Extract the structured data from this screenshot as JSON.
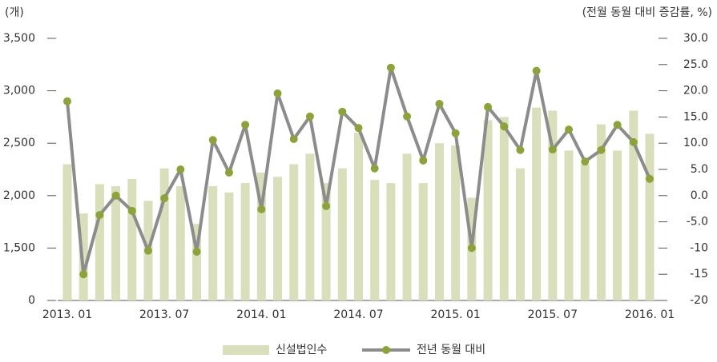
{
  "chart_data": {
    "type": "bar_line",
    "y_label": "(개)",
    "y2_label": "(전월 동월 대비 증감률, %)",
    "categories": [
      "2013. 01",
      null,
      null,
      null,
      null,
      null,
      "2013. 07",
      null,
      null,
      null,
      null,
      null,
      "2014. 01",
      null,
      null,
      null,
      null,
      null,
      "2014. 07",
      null,
      null,
      null,
      null,
      null,
      "2015. 01",
      null,
      null,
      null,
      null,
      null,
      "2015. 07",
      null,
      null,
      null,
      null,
      null,
      "2016. 01"
    ],
    "series": [
      {
        "name": "신설법인수",
        "type": "bar",
        "color": "#d9dfbb",
        "values": [
          2300,
          1830,
          2110,
          2090,
          2160,
          1950,
          2260,
          2090,
          1730,
          2090,
          2030,
          2120,
          2220,
          2180,
          2300,
          2400,
          2120,
          2260,
          2600,
          2150,
          2120,
          2400,
          2120,
          2500,
          2480,
          1980,
          2720,
          2750,
          2260,
          2840,
          2810,
          2430,
          2300,
          2680,
          2430,
          2810,
          2590
        ]
      },
      {
        "name": "전년 동월 대비",
        "type": "line",
        "axis": "y2",
        "color": "#8c8c8c",
        "marker_color": "#8ca33a",
        "values": [
          18.0,
          -15.0,
          -3.7,
          0.0,
          -2.9,
          -10.5,
          -0.5,
          5.0,
          -10.7,
          10.6,
          4.4,
          13.5,
          -2.6,
          19.5,
          10.8,
          15.1,
          -2.0,
          16.0,
          12.9,
          5.2,
          24.4,
          15.1,
          6.7,
          17.5,
          11.9,
          -10.0,
          16.9,
          13.2,
          8.7,
          23.8,
          8.8,
          12.6,
          6.5,
          8.7,
          13.5,
          10.2,
          3.2
        ]
      }
    ],
    "ylim": [
      0,
      3500
    ],
    "y_break": [
      0,
      1500
    ],
    "yticks": [
      0,
      {
        "value": 1500,
        "label": "1,500"
      },
      {
        "value": 2000,
        "label": "2,000"
      },
      {
        "value": 2500,
        "label": "2,500"
      },
      {
        "value": 3000,
        "label": "3,000"
      },
      {
        "value": 3500,
        "label": "3,500"
      }
    ],
    "y2lim": [
      -20,
      30
    ],
    "y2ticks": [
      -20,
      -15,
      -10,
      {
        "value": -5,
        "label": "-5.0"
      },
      {
        "value": 0,
        "label": "0.0"
      },
      {
        "value": 5,
        "label": "5.0"
      },
      {
        "value": 10,
        "label": "10.0"
      },
      {
        "value": 15,
        "label": "15.0"
      },
      {
        "value": 20,
        "label": "20.0"
      },
      {
        "value": 25,
        "label": "25.0"
      },
      {
        "value": 30,
        "label": "30.0"
      }
    ],
    "legend": "bottom"
  }
}
